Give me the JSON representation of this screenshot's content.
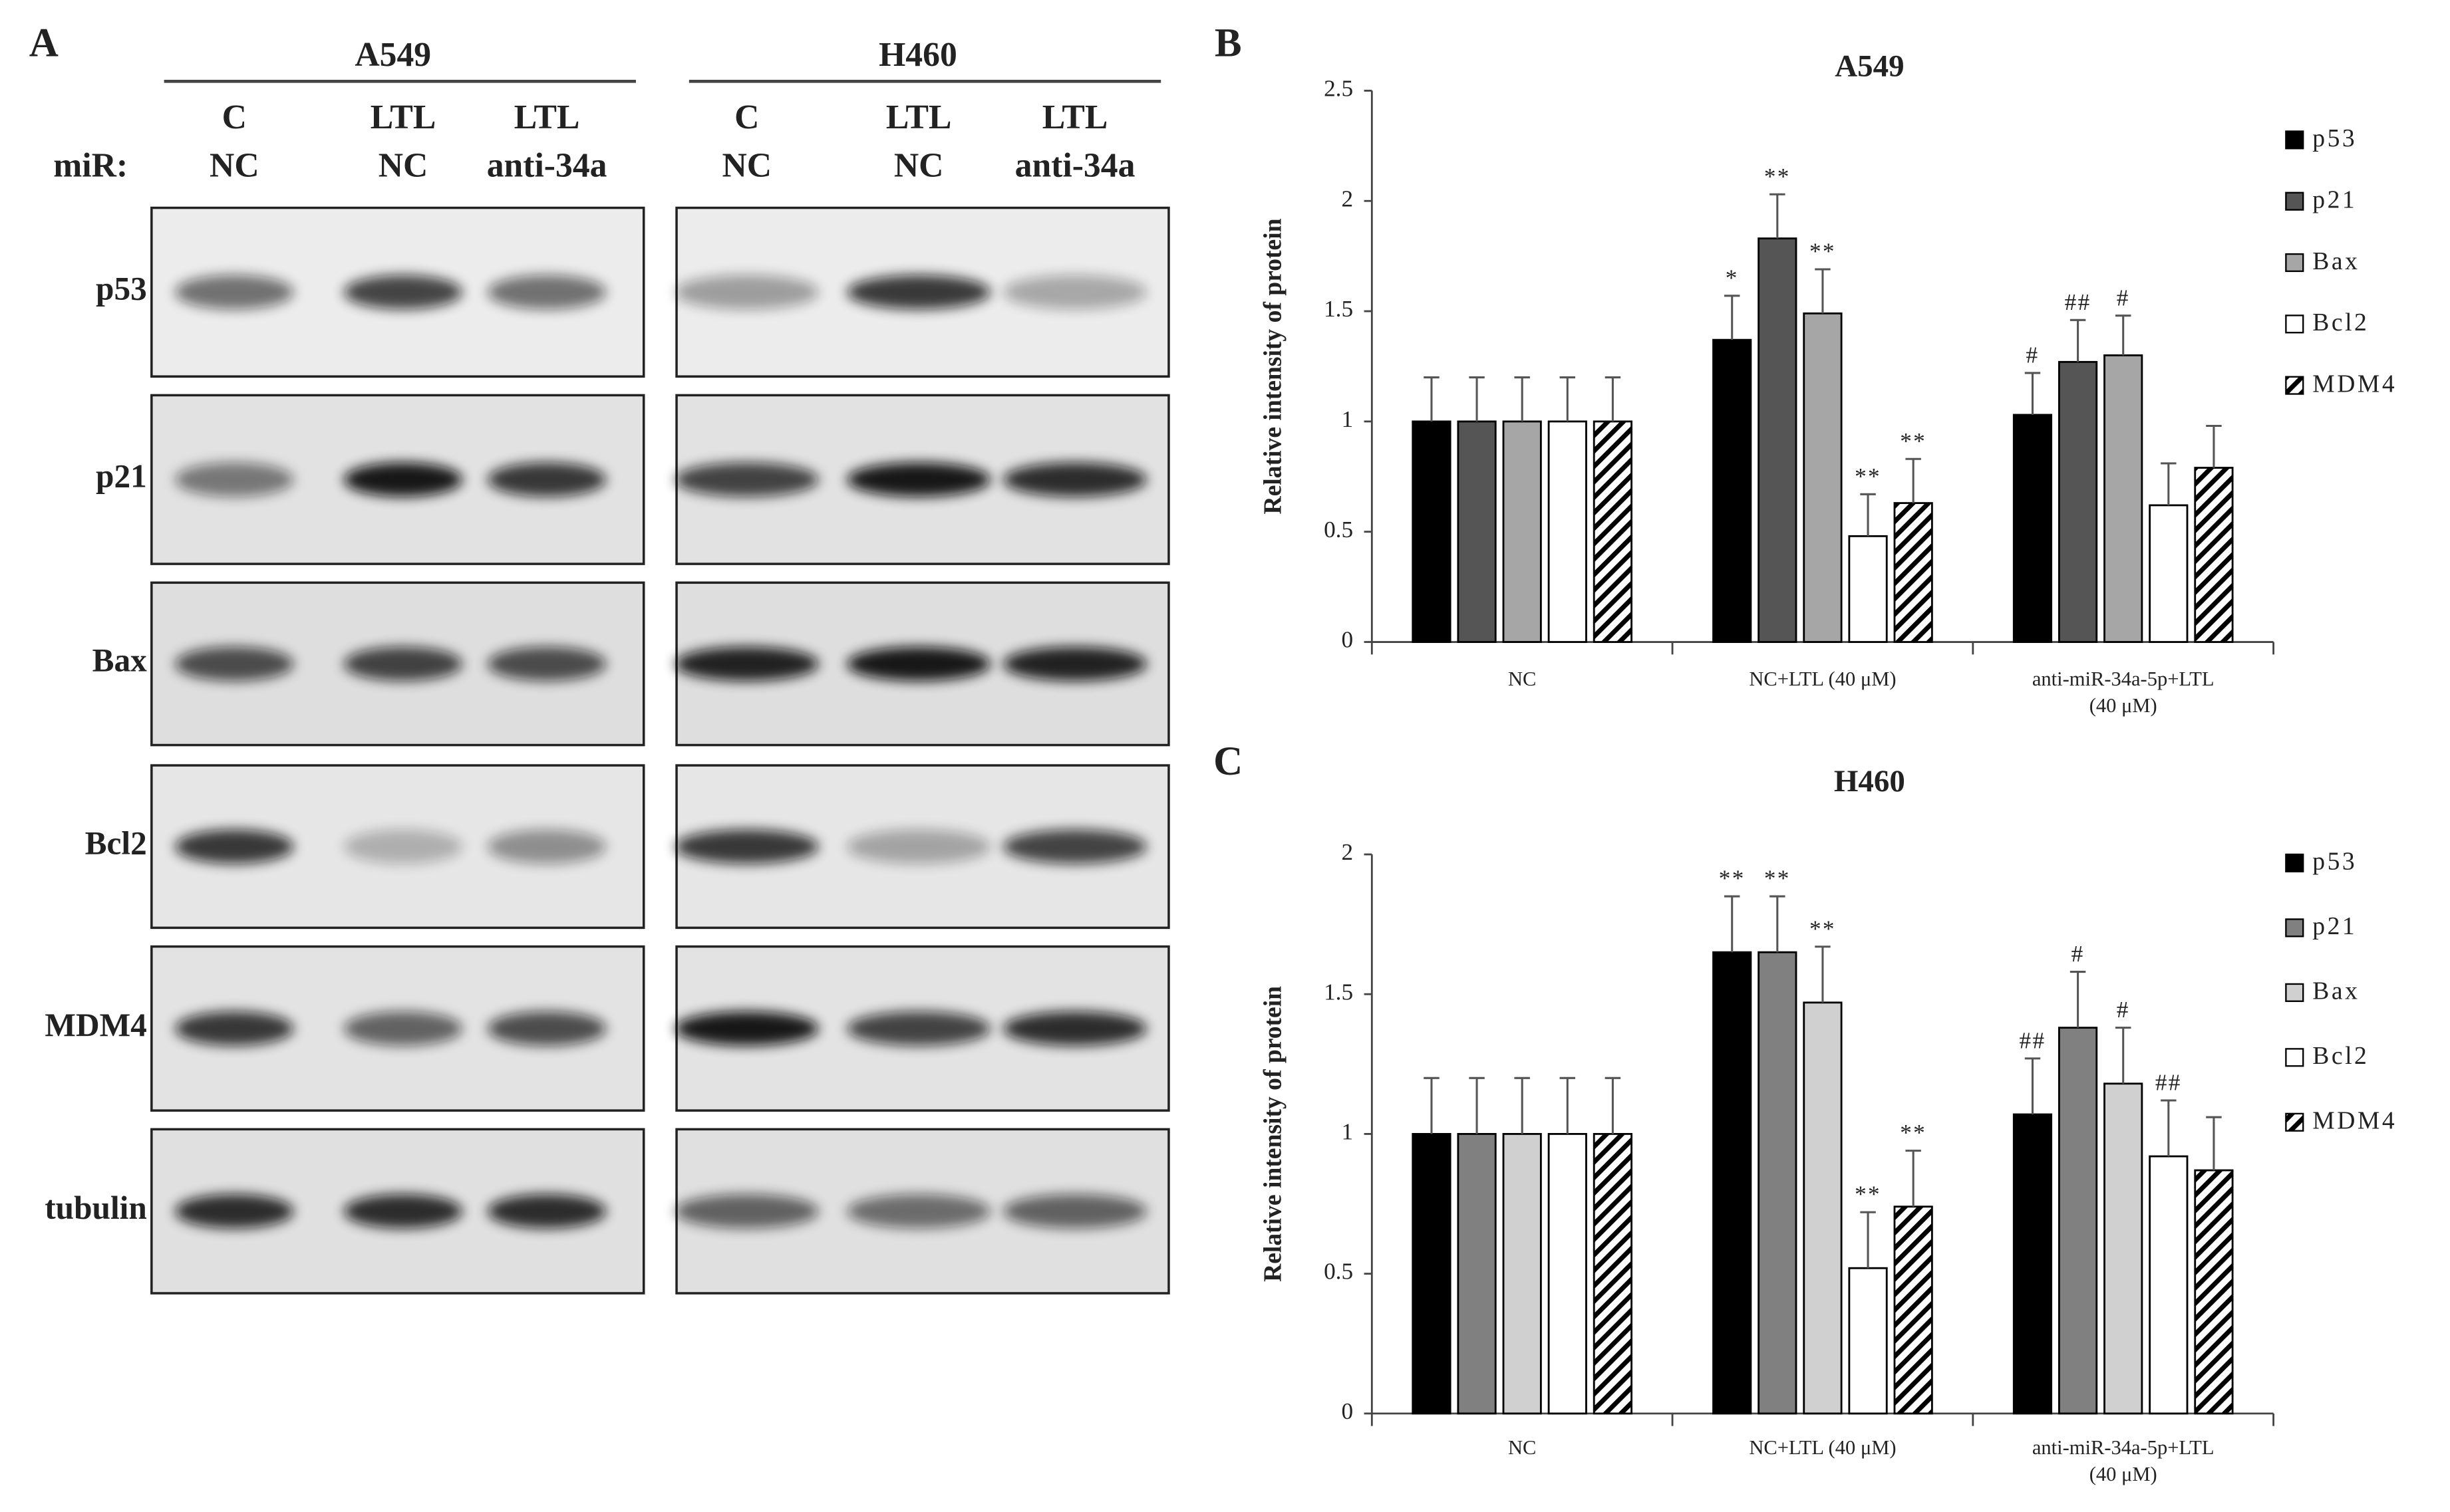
{
  "blot": {
    "panel_label": "A",
    "cell_lines": [
      "A549",
      "H460"
    ],
    "mir_label": "miR:",
    "lanes": [
      [
        "C",
        "NC"
      ],
      [
        "LTL",
        "NC"
      ],
      [
        "LTL",
        "anti-34a"
      ]
    ],
    "proteins": [
      "p53",
      "p21",
      "Bax",
      "Bcl2",
      "MDM4",
      "tubulin"
    ]
  },
  "chart_data": [
    {
      "type": "bar",
      "panel_label": "B",
      "title": "A549",
      "y_label": "Relative  intensity of protein",
      "categories": [
        "NC",
        "NC+LTL (40 μM)",
        "anti-miR-34a-5p+LTL (40 μM)"
      ],
      "ylim": [
        0,
        2.5
      ],
      "yticks": [
        0,
        0.5,
        1,
        1.5,
        2,
        2.5
      ],
      "series": [
        {
          "name": "p53",
          "color": "#000000",
          "values": [
            1.0,
            1.37,
            1.03
          ],
          "errors": [
            0.2,
            0.2,
            0.19
          ],
          "significance": [
            null,
            "*",
            "#"
          ]
        },
        {
          "name": "p21",
          "color": "#555555",
          "values": [
            1.0,
            1.83,
            1.27
          ],
          "errors": [
            0.2,
            0.2,
            0.19
          ],
          "significance": [
            null,
            "**",
            "##"
          ]
        },
        {
          "name": "Bax",
          "color": "#a6a6a6",
          "values": [
            1.0,
            1.49,
            1.3
          ],
          "errors": [
            0.2,
            0.2,
            0.18
          ],
          "significance": [
            null,
            "**",
            "#"
          ]
        },
        {
          "name": "Bcl2",
          "color": "#ffffff",
          "values": [
            1.0,
            0.48,
            0.62
          ],
          "errors": [
            0.2,
            0.19,
            0.19
          ],
          "significance": [
            null,
            "**",
            null
          ]
        },
        {
          "name": "MDM4",
          "color": "#ffffff",
          "hatch": true,
          "values": [
            1.0,
            0.63,
            0.79
          ],
          "errors": [
            0.2,
            0.2,
            0.19
          ],
          "significance": [
            null,
            "**",
            null
          ]
        }
      ]
    },
    {
      "type": "bar",
      "panel_label": "C",
      "title": "H460",
      "y_label": "Relative  intensity of protein",
      "categories": [
        "NC",
        "NC+LTL (40 μM)",
        "anti-miR-34a-5p+LTL (40 μM)"
      ],
      "ylim": [
        0,
        2
      ],
      "yticks": [
        0,
        0.5,
        1,
        1.5,
        2
      ],
      "series": [
        {
          "name": "p53",
          "color": "#000000",
          "values": [
            1.0,
            1.65,
            1.07
          ],
          "errors": [
            0.2,
            0.2,
            0.2
          ],
          "significance": [
            null,
            "**",
            "##"
          ]
        },
        {
          "name": "p21",
          "color": "#808080",
          "values": [
            1.0,
            1.65,
            1.38
          ],
          "errors": [
            0.2,
            0.2,
            0.2
          ],
          "significance": [
            null,
            "**",
            "#"
          ]
        },
        {
          "name": "Bax",
          "color": "#d0d0d0",
          "values": [
            1.0,
            1.47,
            1.18
          ],
          "errors": [
            0.2,
            0.2,
            0.2
          ],
          "significance": [
            null,
            "**",
            "#"
          ]
        },
        {
          "name": "Bcl2",
          "color": "#ffffff",
          "values": [
            1.0,
            0.52,
            0.92
          ],
          "errors": [
            0.2,
            0.2,
            0.2
          ],
          "significance": [
            null,
            "**",
            "##"
          ]
        },
        {
          "name": "MDM4",
          "color": "#ffffff",
          "hatch": true,
          "values": [
            1.0,
            0.74,
            0.87
          ],
          "errors": [
            0.2,
            0.2,
            0.19
          ],
          "significance": [
            null,
            "**",
            null
          ]
        }
      ]
    }
  ]
}
